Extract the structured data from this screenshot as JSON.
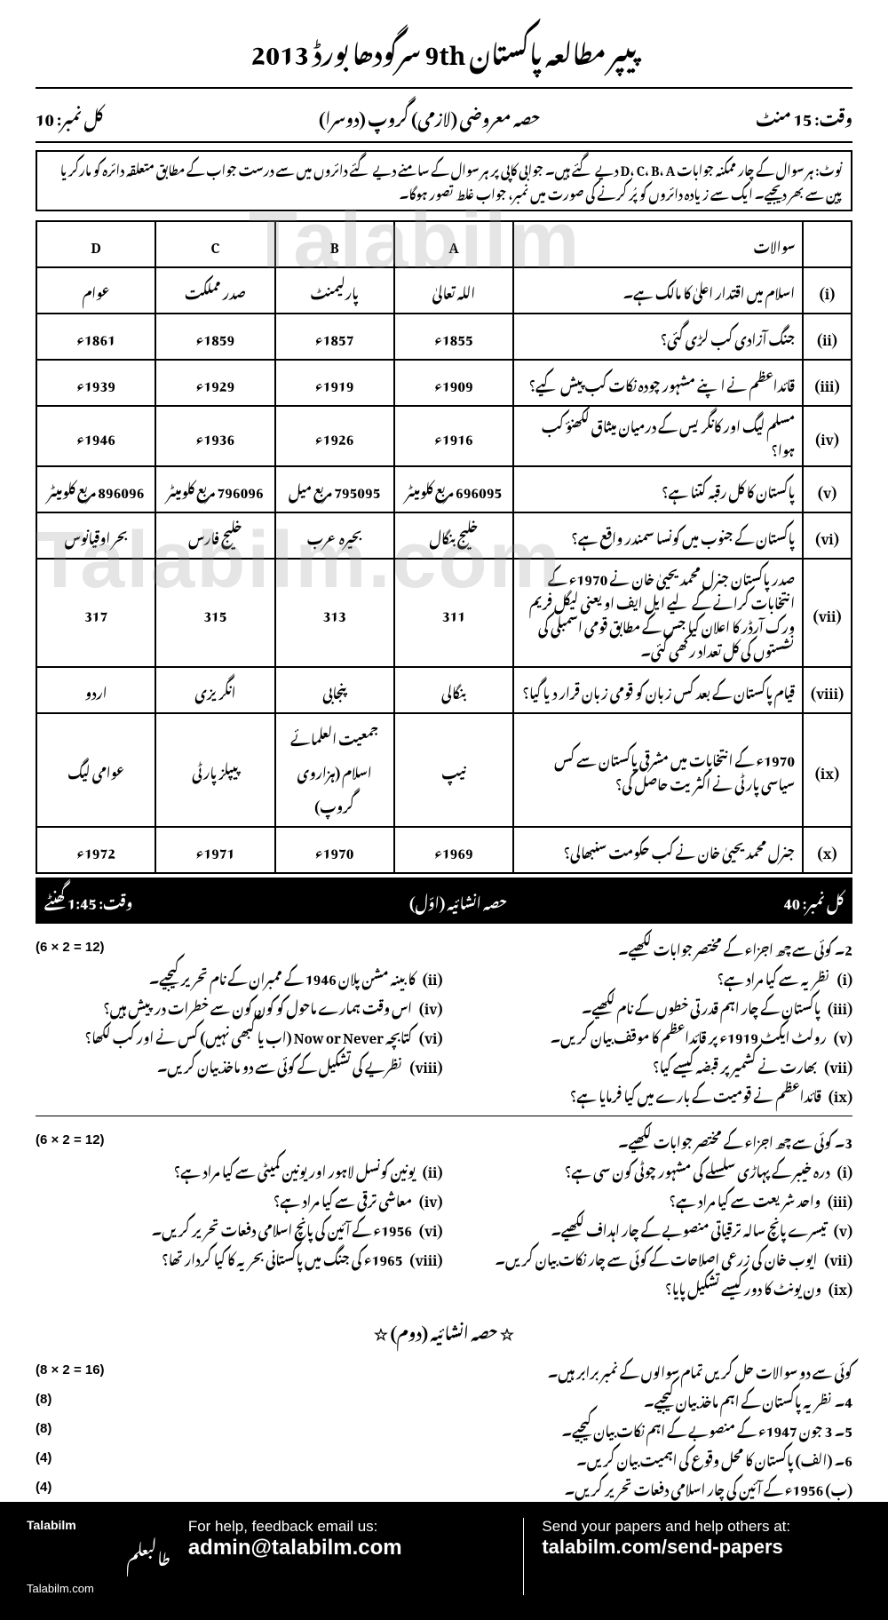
{
  "header": {
    "title": "پیپر مطالعہ پاکستان 9th سرگودھا بورڈ 2013",
    "time": "وقت: 15 منٹ",
    "subject": "حصہ معروضی (لازمی) گروپ (دوسرا)",
    "marks": "کل نمبر: 10"
  },
  "note": "نوٹ: ہر سوال کے چار ممکنہ جوابات D، C، B، A دیے گئے ہیں۔ جوابی کاپی پر ہر سوال کے سامنے دیے گئے دائروں میں سے درست جواب کے مطابق متعلقہ دائرہ کو مارکر یا پین سے بھر دیجیے۔ ایک سے زیادہ دائروں کو پُر کرنے کی صورت میں نمبر، جواب غلط تصور ہوگا۔",
  "watermark1": "Talabilm",
  "watermark2": "Talabilm.com",
  "mcq": {
    "headers": {
      "num": "",
      "q": "سوالات",
      "a": "A",
      "b": "B",
      "c": "C",
      "d": "D"
    },
    "rows": [
      {
        "n": "(i)",
        "q": "اسلام میں اقتدار اعلیٰ کا مالک ہے۔",
        "a": "اللہ تعالیٰ",
        "b": "پارلیمنٹ",
        "c": "صدر مملکت",
        "d": "عوام"
      },
      {
        "n": "(ii)",
        "q": "جنگ آزادی کب لڑی گئی؟",
        "a": "1855ء",
        "b": "1857ء",
        "c": "1859ء",
        "d": "1861ء"
      },
      {
        "n": "(iii)",
        "q": "قائداعظم نے اپنے مشہور چودہ نکات کب پیش کیے؟",
        "a": "1909ء",
        "b": "1919ء",
        "c": "1929ء",
        "d": "1939ء"
      },
      {
        "n": "(iv)",
        "q": "مسلم لیگ اور کانگریس کے درمیان میثاق لکھنؤ کب ہوا؟",
        "a": "1916ء",
        "b": "1926ء",
        "c": "1936ء",
        "d": "1946ء"
      },
      {
        "n": "(v)",
        "q": "پاکستان کا کل رقبہ کتنا ہے؟",
        "a": "696095 مربع کلومیٹر",
        "b": "795095 مربع میل",
        "c": "796096 مربع کلومیٹر",
        "d": "896096 مربع کلومیٹر"
      },
      {
        "n": "(vi)",
        "q": "پاکستان کے جنوب میں کونسا سمندر واقع ہے؟",
        "a": "خلیج بنگال",
        "b": "بحیرہ عرب",
        "c": "خلیج فارس",
        "d": "بحر اوقیانوس"
      },
      {
        "n": "(vii)",
        "q": "صدر پاکستان جنرل محمد یحییٰ خان نے 1970ء کے انتخابات کرانے کے لیے ایل ایف او یعنی لیگل فریم ورک آرڈر کا اعلان کیا جس کے مطابق قومی اسمبلی کی نشستوں کی کل تعداد رکھی گئی۔",
        "a": "311",
        "b": "313",
        "c": "315",
        "d": "317"
      },
      {
        "n": "(viii)",
        "q": "قیام پاکستان کے بعد کس زبان کو قومی زبان قرار دیا گیا؟",
        "a": "بنگالی",
        "b": "پنجابی",
        "c": "انگریزی",
        "d": "اردو"
      },
      {
        "n": "(ix)",
        "q": "1970ء کے انتخابات میں مشرقی پاکستان سے کس سیاسی پارٹی نے اکثریت حاصل کی؟",
        "a": "نیپ",
        "b": "جمعیت العلمائے اسلام (ہزاروی گروپ)",
        "c": "پیپلز پارٹی",
        "d": "عوامی لیگ"
      },
      {
        "n": "(x)",
        "q": "جنرل محمد یحییٰ خان نے کب حکومت سنبھالی؟",
        "a": "1969ء",
        "b": "1970ء",
        "c": "1971ء",
        "d": "1972ء"
      }
    ]
  },
  "blackbar": {
    "marks": "کل نمبر: 40",
    "title": "حصہ انشائیہ (اوّل)",
    "time": "وقت: 1:45 گھنٹے"
  },
  "q2": {
    "head": "2۔ کوئی سے چھ اجزاء کے مختصر جوابات لکھیے۔",
    "marks": "(6 × 2 = 12)",
    "parts": [
      {
        "n": "(i)",
        "t": "نظریہ سے کیا مراد ہے؟"
      },
      {
        "n": "(ii)",
        "t": "کابینہ مشن پلان 1946 کے ممبران کے نام تحریر کیجیے۔"
      },
      {
        "n": "(iii)",
        "t": "پاکستان کے چار اہم قدرتی خطوں کے نام لکھیے۔"
      },
      {
        "n": "(iv)",
        "t": "اس وقت ہمارے ماحول کو کون کون سے خطرات درپیش ہیں؟"
      },
      {
        "n": "(v)",
        "t": "رولٹ ایکٹ 1919ء پر قائداعظم کا موقف بیان کریں۔"
      },
      {
        "n": "(vi)",
        "t": "کتابچہ Now or Never (اب یا کبھی نہیں) کس نے اور کب لکھا؟"
      },
      {
        "n": "(vii)",
        "t": "بھارت نے کشمیر پر قبضہ کیسے کیا؟"
      },
      {
        "n": "(viii)",
        "t": "نظریے کی تشکیل کے کوئی سے دو ماخذ بیان کریں۔"
      },
      {
        "n": "(ix)",
        "t": "قائداعظم نے قومیت کے بارے میں کیا فرمایا ہے؟"
      }
    ]
  },
  "q3": {
    "head": "3۔ کوئی سے چھ اجزاء کے مختصر جوابات لکھیے۔",
    "marks": "(6 × 2 = 12)",
    "parts": [
      {
        "n": "(i)",
        "t": "درہ خیبر کے پہاڑی سلسلے کی مشہور چوٹی کون سی ہے؟"
      },
      {
        "n": "(ii)",
        "t": "یونین کونسل لاہور اور یونین کمیٹی سے کیا مراد ہے؟"
      },
      {
        "n": "(iii)",
        "t": "واحد شریعت سے کیا مراد ہے؟"
      },
      {
        "n": "(iv)",
        "t": "معاشی ترقی سے کیا مراد ہے؟"
      },
      {
        "n": "(v)",
        "t": "تیسرے پانچ سالہ ترقیاتی منصوبے کے چار اہداف لکھیے۔"
      },
      {
        "n": "(vi)",
        "t": "1956ء کے آئین کی پانچ اسلامی دفعات تحریر کریں۔"
      },
      {
        "n": "(vii)",
        "t": "ایوب خان کی زرعی اصلاحات کے کوئی سے چار نکات بیان کریں۔"
      },
      {
        "n": "(viii)",
        "t": "1965ء کی جنگ میں پاکستانی بحریہ کا کیا کردار تھا؟"
      },
      {
        "n": "(ix)",
        "t": "ون یونٹ کا دور کیسے تشکیل پایا؟"
      }
    ]
  },
  "sec2_title": "☆ حصہ انشائیہ (دوم) ☆",
  "longhead": {
    "t": "کوئی سے دو سوالات حل کریں تمام سوالوں کے نمبر برابر ہیں۔",
    "m": "(8 × 2 = 16)"
  },
  "longq": [
    {
      "n": "4۔",
      "t": "نظریہ پاکستان کے اہم ماخذ بیان کیجیے۔",
      "m": "(8)"
    },
    {
      "n": "5۔",
      "t": "3 جون 1947ء کے منصوبے کے اہم نکات بیان کیجیے۔",
      "m": "(8)"
    },
    {
      "n": "6۔ (الف)",
      "t": "پاکستان کا محل وقوع کی اہمیت بیان کریں۔",
      "m": "(4)"
    },
    {
      "n": "(ب)",
      "t": "1956ء کے آئین کی چار اسلامی دفعات تحریر کریں۔",
      "m": "(4)"
    }
  ],
  "footer": {
    "brand_en": "Talabilm",
    "brand_ur": "طالبعلم",
    "site": "Talabilm.com",
    "help_label": "For help, feedback email us:",
    "help_email": "admin@talabilm.com",
    "send_label": "Send your papers and help others at:",
    "send_url": "talabilm.com/send-papers"
  },
  "colors": {
    "text": "#000000",
    "bg": "#ffffff",
    "bar_bg": "#000000",
    "bar_fg": "#ffffff",
    "watermark": "rgba(150,150,150,0.25)"
  }
}
